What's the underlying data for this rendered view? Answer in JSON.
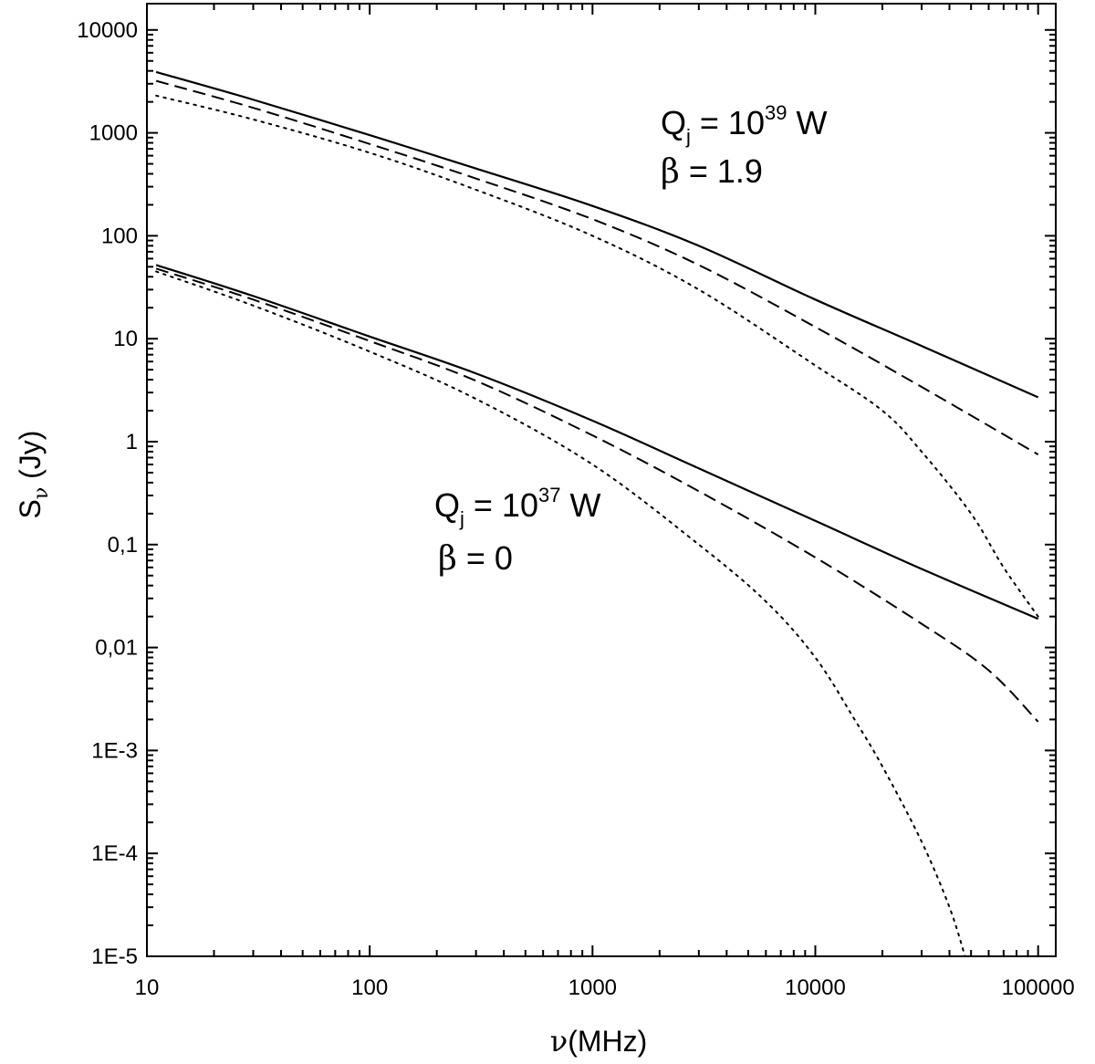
{
  "chart_data": {
    "type": "line",
    "title": "",
    "xlabel": {
      "symbol": "ν",
      "text": "(MHz)"
    },
    "ylabel": {
      "symbol": "S",
      "subscript": "ν",
      "text": " (Jy)"
    },
    "xscale": "log",
    "yscale": "log",
    "xlim": [
      10,
      120000
    ],
    "ylim": [
      1e-05,
      18000
    ],
    "x_ticks": [
      {
        "value": 10,
        "label": "10"
      },
      {
        "value": 100,
        "label": "100"
      },
      {
        "value": 1000,
        "label": "1000"
      },
      {
        "value": 10000,
        "label": "10000"
      },
      {
        "value": 100000,
        "label": "100000"
      }
    ],
    "y_ticks": [
      {
        "value": 1e-05,
        "label": "1E-5"
      },
      {
        "value": 0.0001,
        "label": "1E-4"
      },
      {
        "value": 0.001,
        "label": "1E-3"
      },
      {
        "value": 0.01,
        "label": "0,01"
      },
      {
        "value": 0.1,
        "label": "0,1"
      },
      {
        "value": 1,
        "label": "1"
      },
      {
        "value": 10,
        "label": "10"
      },
      {
        "value": 100,
        "label": "100"
      },
      {
        "value": 1000,
        "label": "1000"
      },
      {
        "value": 10000,
        "label": "10000"
      }
    ],
    "grid": false,
    "legend": "none",
    "series": [
      {
        "group": "upper",
        "style": "solid",
        "x": [
          11,
          30,
          100,
          300,
          1000,
          3000,
          10000,
          30000,
          100000
        ],
        "y": [
          3900,
          2100,
          950,
          450,
          195,
          80,
          24,
          8.5,
          2.7
        ]
      },
      {
        "group": "upper",
        "style": "dashed",
        "x": [
          11,
          30,
          100,
          300,
          1000,
          3000,
          10000,
          30000,
          100000
        ],
        "y": [
          3200,
          1750,
          780,
          360,
          145,
          52,
          13,
          3.4,
          0.75
        ]
      },
      {
        "group": "upper",
        "style": "dotted",
        "x": [
          11,
          30,
          100,
          300,
          1000,
          3000,
          10000,
          20000,
          30000,
          50000,
          70000,
          100000
        ],
        "y": [
          2300,
          1350,
          640,
          280,
          100,
          30,
          5.5,
          2,
          0.8,
          0.2,
          0.06,
          0.02
        ]
      },
      {
        "group": "lower",
        "style": "solid",
        "x": [
          11,
          30,
          100,
          300,
          1000,
          3000,
          10000,
          30000,
          100000
        ],
        "y": [
          52,
          26,
          10.5,
          4.6,
          1.6,
          0.55,
          0.17,
          0.058,
          0.019
        ]
      },
      {
        "group": "lower",
        "style": "dashed",
        "x": [
          11,
          30,
          100,
          300,
          1000,
          3000,
          10000,
          30000,
          60000,
          100000
        ],
        "y": [
          48,
          24,
          9.5,
          3.9,
          1.15,
          0.33,
          0.075,
          0.017,
          0.006,
          0.0019
        ]
      },
      {
        "group": "lower",
        "style": "dotted",
        "x": [
          11,
          30,
          100,
          300,
          1000,
          3000,
          6000,
          10000,
          15000,
          20000,
          30000,
          40000,
          47000
        ],
        "y": [
          45,
          21,
          7.5,
          2.6,
          0.6,
          0.1,
          0.028,
          0.008,
          0.002,
          0.0007,
          0.00013,
          3e-05,
          1e-05
        ]
      }
    ],
    "annotations": [
      {
        "group": "upper",
        "q_base": "Q",
        "q_sub": "j",
        "q_eq": " = 10",
        "q_exp": "39",
        "q_unit": " W",
        "beta_symbol": "β",
        "beta_eq": " = 1.9"
      },
      {
        "group": "lower",
        "q_base": "Q",
        "q_sub": "j",
        "q_eq": " = 10",
        "q_exp": "37",
        "q_unit": " W",
        "beta_symbol": "β",
        "beta_eq": " = 0"
      }
    ]
  }
}
